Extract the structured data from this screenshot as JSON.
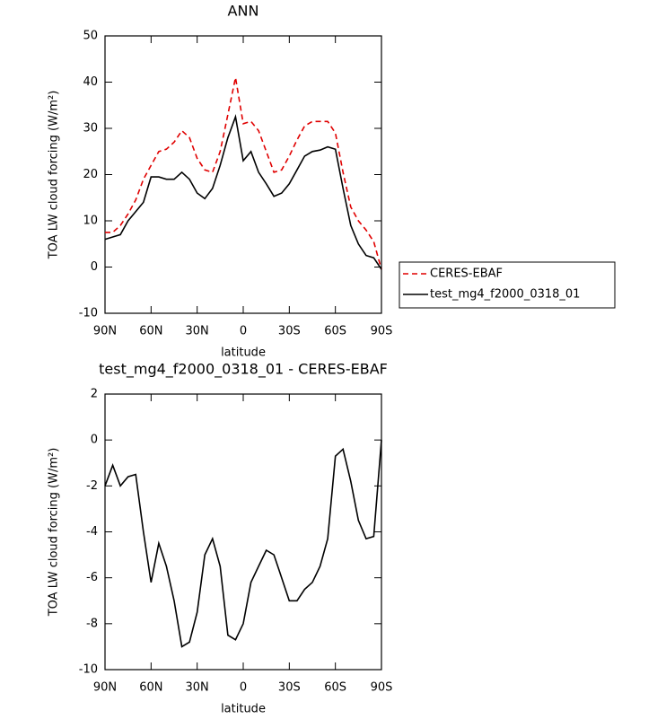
{
  "chart_data": [
    {
      "type": "line",
      "title": "ANN",
      "xlabel": "latitude",
      "ylabel": "TOA LW cloud forcing (W/m²)",
      "x": [
        90,
        85,
        80,
        75,
        70,
        65,
        60,
        55,
        50,
        45,
        40,
        35,
        30,
        25,
        20,
        15,
        10,
        5,
        0,
        -5,
        -10,
        -15,
        -20,
        -25,
        -30,
        -35,
        -40,
        -45,
        -50,
        -55,
        -60,
        -65,
        -70,
        -75,
        -80,
        -85,
        -90
      ],
      "series": [
        {
          "name": "CERES-EBAF",
          "color": "#e00000",
          "style": "dashed",
          "values": [
            7.5,
            7.5,
            9,
            11.5,
            14.5,
            19,
            22,
            25,
            25.5,
            27,
            29.5,
            28,
            23.5,
            21,
            20.5,
            25,
            33,
            41,
            31,
            31.5,
            29.5,
            25,
            20.5,
            21,
            24,
            27.5,
            30.5,
            31.5,
            31.5,
            31.5,
            29,
            20.5,
            13,
            10,
            8,
            5.5,
            -0.5
          ]
        },
        {
          "name": "test_mg4_f2000_0318_01",
          "color": "#000000",
          "style": "solid",
          "values": [
            6,
            6.5,
            7,
            10,
            12,
            14,
            19.5,
            19.5,
            19,
            19,
            20.5,
            19,
            16,
            14.8,
            17,
            22,
            28,
            32.5,
            23,
            25,
            20.5,
            18,
            15.3,
            16,
            18,
            21,
            24,
            25,
            25.3,
            26,
            25.5,
            17,
            9,
            5,
            2.5,
            2,
            -0.5
          ]
        }
      ],
      "xlim": [
        90,
        -90
      ],
      "xticks": [
        {
          "value": 90,
          "label": "90N"
        },
        {
          "value": 60,
          "label": "60N"
        },
        {
          "value": 30,
          "label": "30N"
        },
        0,
        {
          "value": -30,
          "label": "30S"
        },
        {
          "value": -60,
          "label": "60S"
        },
        {
          "value": -90,
          "label": "90S"
        }
      ],
      "ylim": [
        -10,
        50
      ],
      "yticks": [
        -10,
        0,
        10,
        20,
        30,
        40,
        50
      ],
      "legend": "right"
    },
    {
      "type": "line",
      "title": "test_mg4_f2000_0318_01 - CERES-EBAF",
      "xlabel": "latitude",
      "ylabel": "TOA LW cloud forcing (W/m²)",
      "x": [
        90,
        85,
        80,
        75,
        70,
        65,
        60,
        55,
        50,
        45,
        40,
        35,
        30,
        25,
        20,
        15,
        10,
        5,
        0,
        -5,
        -10,
        -15,
        -20,
        -25,
        -30,
        -35,
        -40,
        -45,
        -50,
        -55,
        -60,
        -65,
        -70,
        -75,
        -80,
        -85,
        -90
      ],
      "series": [
        {
          "color": "#000000",
          "style": "solid",
          "values": [
            -2,
            -1.1,
            -2,
            -1.6,
            -1.5,
            -4,
            -6.2,
            -4.5,
            -5.5,
            -7,
            -9,
            -8.8,
            -7.5,
            -5,
            -4.3,
            -5.5,
            -8.5,
            -8.7,
            -8,
            -6.2,
            -5.5,
            -4.8,
            -5,
            -6,
            -7,
            -7,
            -6.5,
            -6.2,
            -5.5,
            -4.3,
            -0.7,
            -0.4,
            -1.8,
            -3.5,
            -4.3,
            -4.2,
            0
          ]
        }
      ],
      "xlim": [
        90,
        -90
      ],
      "xticks": [
        {
          "value": 90,
          "label": "90N"
        },
        {
          "value": 60,
          "label": "60N"
        },
        {
          "value": 30,
          "label": "30N"
        },
        0,
        {
          "value": -30,
          "label": "30S"
        },
        {
          "value": -60,
          "label": "60S"
        },
        {
          "value": -90,
          "label": "90S"
        }
      ],
      "ylim": [
        -10,
        2
      ],
      "yticks": [
        -10,
        -8,
        -6,
        -4,
        -2,
        0,
        2
      ]
    }
  ]
}
